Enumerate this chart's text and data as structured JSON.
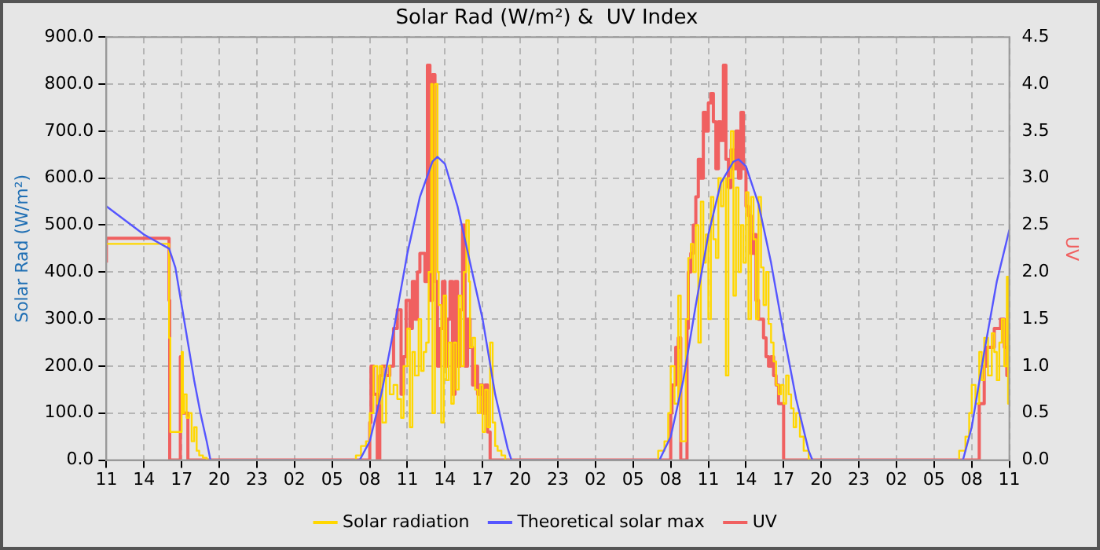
{
  "chart_data": {
    "type": "line",
    "title": "Solar Rad (W/m²) &  UV Index",
    "ylabel": "Solar Rad (W/m²)",
    "y2label": "UV",
    "xlim": [
      "--01-01T11:00",
      "--01-04T11:00"
    ],
    "xticks": [
      {
        "value": "--01-01T11:00",
        "label": "11"
      },
      {
        "value": "--01-01T14:00",
        "label": "14"
      },
      {
        "value": "--01-01T17:00",
        "label": "17"
      },
      {
        "value": "--01-01T20:00",
        "label": "20"
      },
      {
        "value": "--01-01T23:00",
        "label": "23"
      },
      {
        "value": "--01-02T02:00",
        "label": "02"
      },
      {
        "value": "--01-02T05:00",
        "label": "05"
      },
      {
        "value": "--01-02T08:00",
        "label": "08"
      },
      {
        "value": "--01-02T11:00",
        "label": "11"
      },
      {
        "value": "--01-02T14:00",
        "label": "14"
      },
      {
        "value": "--01-02T17:00",
        "label": "17"
      },
      {
        "value": "--01-02T20:00",
        "label": "20"
      },
      {
        "value": "--01-02T23:00",
        "label": "23"
      },
      {
        "value": "--01-03T02:00",
        "label": "02"
      },
      {
        "value": "--01-03T05:00",
        "label": "05"
      },
      {
        "value": "--01-03T08:00",
        "label": "08"
      },
      {
        "value": "--01-03T11:00",
        "label": "11"
      },
      {
        "value": "--01-03T14:00",
        "label": "14"
      },
      {
        "value": "--01-03T17:00",
        "label": "17"
      },
      {
        "value": "--01-03T20:00",
        "label": "20"
      },
      {
        "value": "--01-03T23:00",
        "label": "23"
      },
      {
        "value": "--01-04T02:00",
        "label": "02"
      },
      {
        "value": "--01-04T05:00",
        "label": "05"
      },
      {
        "value": "--01-04T08:00",
        "label": "08"
      },
      {
        "value": "--01-04T11:00",
        "label": "11"
      }
    ],
    "ylim": [
      0,
      900
    ],
    "yticks": [
      {
        "value": 0,
        "label": "0.0"
      },
      {
        "value": 100,
        "label": "100.0"
      },
      {
        "value": 200,
        "label": "200.0"
      },
      {
        "value": 300,
        "label": "300.0"
      },
      {
        "value": 400,
        "label": "400.0"
      },
      {
        "value": 500,
        "label": "500.0"
      },
      {
        "value": 600,
        "label": "600.0"
      },
      {
        "value": 700,
        "label": "700.0"
      },
      {
        "value": 800,
        "label": "800.0"
      },
      {
        "value": 900,
        "label": "900.0"
      }
    ],
    "y2lim": [
      0,
      4.5
    ],
    "y2ticks": [
      {
        "value": 0,
        "label": "0.0"
      },
      {
        "value": 0.5,
        "label": "0.5"
      },
      {
        "value": 1,
        "label": "1.0"
      },
      {
        "value": 1.5,
        "label": "1.5"
      },
      {
        "value": 2,
        "label": "2.0"
      },
      {
        "value": 2.5,
        "label": "2.5"
      },
      {
        "value": 3,
        "label": "3.0"
      },
      {
        "value": 3.5,
        "label": "3.5"
      },
      {
        "value": 4,
        "label": "4.0"
      },
      {
        "value": 4.5,
        "label": "4.5"
      }
    ],
    "grid": true,
    "legend": "bottom",
    "series": [
      {
        "name": "Solar radiation",
        "type": "step",
        "color": "#ffd700",
        "x": [
          "--01-01T11:00",
          "--01-01T16:00",
          "--01-01T16:06",
          "--01-01T16:18",
          "--01-01T17:00",
          "--01-01T17:06",
          "--01-01T17:12",
          "--01-01T17:24",
          "--01-01T17:36",
          "--01-01T17:48",
          "--01-01T18:00",
          "--01-01T18:12",
          "--01-01T18:24",
          "--01-01T18:42",
          "--01-01T19:00",
          "--01-01T19:18",
          "--01-02T06:54",
          "--01-02T07:18",
          "--01-02T07:42",
          "--01-02T08:00",
          "--01-02T08:18",
          "--01-02T08:36",
          "--01-02T08:48",
          "--01-02T09:00",
          "--01-02T09:18",
          "--01-02T09:36",
          "--01-02T09:54",
          "--01-02T10:12",
          "--01-02T10:30",
          "--01-02T10:42",
          "--01-02T11:00",
          "--01-02T11:12",
          "--01-02T11:24",
          "--01-02T11:36",
          "--01-02T11:54",
          "--01-02T12:06",
          "--01-02T12:18",
          "--01-02T12:30",
          "--01-02T12:42",
          "--01-02T12:54",
          "--01-02T13:00",
          "--01-02T13:12",
          "--01-02T13:24",
          "--01-02T13:30",
          "--01-02T13:42",
          "--01-02T13:54",
          "--01-02T14:06",
          "--01-02T14:18",
          "--01-02T14:30",
          "--01-02T14:42",
          "--01-02T14:54",
          "--01-02T15:06",
          "--01-02T15:18",
          "--01-02T15:30",
          "--01-02T15:42",
          "--01-02T15:54",
          "--01-02T16:00",
          "--01-02T16:12",
          "--01-02T16:24",
          "--01-02T16:36",
          "--01-02T16:48",
          "--01-02T17:00",
          "--01-02T17:12",
          "--01-02T17:24",
          "--01-02T17:36",
          "--01-02T17:48",
          "--01-02T18:00",
          "--01-02T18:12",
          "--01-02T18:30",
          "--01-02T18:48",
          "--01-02T19:06",
          "--01-03T07:00",
          "--01-03T07:30",
          "--01-03T07:48",
          "--01-03T08:00",
          "--01-03T08:18",
          "--01-03T08:36",
          "--01-03T08:48",
          "--01-03T09:00",
          "--01-03T09:12",
          "--01-03T09:24",
          "--01-03T09:36",
          "--01-03T09:48",
          "--01-03T10:00",
          "--01-03T10:12",
          "--01-03T10:24",
          "--01-03T10:36",
          "--01-03T10:48",
          "--01-03T11:00",
          "--01-03T11:12",
          "--01-03T11:24",
          "--01-03T11:36",
          "--01-03T11:48",
          "--01-03T12:00",
          "--01-03T12:12",
          "--01-03T12:24",
          "--01-03T12:36",
          "--01-03T12:48",
          "--01-03T13:00",
          "--01-03T13:12",
          "--01-03T13:24",
          "--01-03T13:36",
          "--01-03T13:48",
          "--01-03T14:00",
          "--01-03T14:12",
          "--01-03T14:24",
          "--01-03T14:36",
          "--01-03T14:48",
          "--01-03T15:00",
          "--01-03T15:12",
          "--01-03T15:24",
          "--01-03T15:36",
          "--01-03T15:48",
          "--01-03T16:00",
          "--01-03T16:12",
          "--01-03T16:24",
          "--01-03T16:36",
          "--01-03T16:48",
          "--01-03T17:00",
          "--01-03T17:12",
          "--01-03T17:24",
          "--01-03T17:36",
          "--01-03T17:48",
          "--01-03T18:00",
          "--01-03T18:18",
          "--01-03T18:36",
          "--01-03T19:00",
          "--01-03T19:18",
          "--01-04T07:00",
          "--01-04T07:30",
          "--01-04T07:48",
          "--01-04T08:00",
          "--01-04T08:18",
          "--01-04T08:36",
          "--01-04T08:48",
          "--01-04T09:00",
          "--01-04T09:18",
          "--01-04T09:36",
          "--01-04T09:48",
          "--01-04T10:00",
          "--01-04T10:12",
          "--01-04T10:24",
          "--01-04T10:36",
          "--01-04T10:48",
          "--01-04T10:54",
          "--01-04T11:00"
        ],
        "values": [
          460,
          460,
          260,
          60,
          60,
          230,
          100,
          140,
          90,
          100,
          40,
          70,
          20,
          10,
          5,
          0,
          0,
          10,
          30,
          40,
          100,
          200,
          120,
          200,
          80,
          200,
          140,
          160,
          130,
          90,
          200,
          280,
          70,
          230,
          180,
          300,
          190,
          230,
          250,
          400,
          800,
          100,
          800,
          400,
          330,
          80,
          350,
          170,
          250,
          120,
          250,
          150,
          350,
          200,
          400,
          510,
          380,
          240,
          260,
          150,
          100,
          160,
          60,
          150,
          70,
          250,
          80,
          30,
          20,
          10,
          0,
          0,
          20,
          40,
          100,
          200,
          120,
          350,
          40,
          40,
          300,
          430,
          460,
          400,
          500,
          250,
          550,
          420,
          480,
          300,
          560,
          470,
          430,
          600,
          540,
          600,
          180,
          600,
          700,
          350,
          580,
          400,
          500,
          420,
          570,
          300,
          560,
          470,
          300,
          560,
          410,
          330,
          400,
          290,
          250,
          210,
          160,
          140,
          160,
          120,
          180,
          140,
          110,
          70,
          100,
          50,
          20,
          0,
          0,
          20,
          50,
          100,
          160,
          120,
          230,
          170,
          260,
          180,
          270,
          230,
          170,
          250,
          300,
          200,
          390,
          120
        ]
      },
      {
        "name": "Theoretical solar max",
        "type": "line",
        "color": "#5555ff",
        "x": [
          "--01-01T11:00",
          "--01-01T12:00",
          "--01-01T13:00",
          "--01-01T14:00",
          "--01-01T15:00",
          "--01-01T16:00",
          "--01-01T16:30",
          "--01-01T17:00",
          "--01-01T17:30",
          "--01-01T18:00",
          "--01-01T18:30",
          "--01-01T19:00",
          "--01-01T19:18",
          "--01-02T07:12",
          "--01-02T08:00",
          "--01-02T09:00",
          "--01-02T10:00",
          "--01-02T11:00",
          "--01-02T12:00",
          "--01-02T13:00",
          "--01-02T13:24",
          "--01-02T14:00",
          "--01-02T15:00",
          "--01-02T16:00",
          "--01-02T17:00",
          "--01-02T18:00",
          "--01-02T19:00",
          "--01-02T19:18",
          "--01-03T07:06",
          "--01-03T08:00",
          "--01-03T09:00",
          "--01-03T10:00",
          "--01-03T11:00",
          "--01-03T12:00",
          "--01-03T13:00",
          "--01-03T13:24",
          "--01-03T14:00",
          "--01-03T15:00",
          "--01-03T16:00",
          "--01-03T17:00",
          "--01-03T18:00",
          "--01-03T19:00",
          "--01-03T19:18",
          "--01-04T07:18",
          "--01-04T08:00",
          "--01-04T09:00",
          "--01-04T10:00",
          "--01-04T11:00"
        ],
        "values": [
          540,
          520,
          500,
          480,
          465,
          450,
          410,
          330,
          250,
          170,
          100,
          40,
          0,
          0,
          40,
          150,
          290,
          440,
          560,
          635,
          645,
          630,
          540,
          420,
          300,
          140,
          25,
          0,
          0,
          50,
          170,
          330,
          480,
          590,
          635,
          640,
          625,
          545,
          420,
          270,
          130,
          20,
          0,
          0,
          70,
          230,
          380,
          490
        ]
      },
      {
        "name": "UV",
        "type": "step",
        "axis": "y2",
        "color": "#f06060",
        "x": [
          "--01-01T11:00",
          "--01-01T11:03",
          "--01-01T16:00",
          "--01-01T16:03",
          "--01-01T16:12",
          "--01-01T16:54",
          "--01-01T17:00",
          "--01-01T17:30",
          "--01-01T17:42",
          "--01-02T08:00",
          "--01-02T08:06",
          "--01-02T08:18",
          "--01-02T08:36",
          "--01-02T08:48",
          "--01-02T09:00",
          "--01-02T09:18",
          "--01-02T09:36",
          "--01-02T09:54",
          "--01-02T10:12",
          "--01-02T10:30",
          "--01-02T10:42",
          "--01-02T10:54",
          "--01-02T11:12",
          "--01-02T11:24",
          "--01-02T11:36",
          "--01-02T11:48",
          "--01-02T12:00",
          "--01-02T12:12",
          "--01-02T12:24",
          "--01-02T12:36",
          "--01-02T12:48",
          "--01-02T13:00",
          "--01-02T13:12",
          "--01-02T13:24",
          "--01-02T13:36",
          "--01-02T13:48",
          "--01-02T14:00",
          "--01-02T14:12",
          "--01-02T14:24",
          "--01-02T14:36",
          "--01-02T14:48",
          "--01-02T15:00",
          "--01-02T15:12",
          "--01-02T15:24",
          "--01-02T15:36",
          "--01-02T15:48",
          "--01-02T16:00",
          "--01-02T16:12",
          "--01-02T16:24",
          "--01-02T16:36",
          "--01-02T16:48",
          "--01-02T17:00",
          "--01-02T17:12",
          "--01-02T17:24",
          "--01-02T17:36",
          "--01-02T17:48",
          "--01-03T08:00",
          "--01-03T08:06",
          "--01-03T08:24",
          "--01-03T08:36",
          "--01-03T08:48",
          "--01-03T08:54",
          "--01-03T09:18",
          "--01-03T09:24",
          "--01-03T09:36",
          "--01-03T09:48",
          "--01-03T10:00",
          "--01-03T10:12",
          "--01-03T10:24",
          "--01-03T10:36",
          "--01-03T10:48",
          "--01-03T11:00",
          "--01-03T11:12",
          "--01-03T11:24",
          "--01-03T11:36",
          "--01-03T11:48",
          "--01-03T12:00",
          "--01-03T12:12",
          "--01-03T12:24",
          "--01-03T12:36",
          "--01-03T12:48",
          "--01-03T13:00",
          "--01-03T13:12",
          "--01-03T13:24",
          "--01-03T13:36",
          "--01-03T13:48",
          "--01-03T14:00",
          "--01-03T14:12",
          "--01-03T14:24",
          "--01-03T14:36",
          "--01-03T14:48",
          "--01-03T15:00",
          "--01-03T15:12",
          "--01-03T15:24",
          "--01-03T15:36",
          "--01-03T15:48",
          "--01-03T16:00",
          "--01-03T16:12",
          "--01-03T16:24",
          "--01-03T16:36",
          "--01-03T16:48",
          "--01-03T17:00",
          "--01-03T17:12",
          "--01-04T08:36",
          "--01-04T09:00",
          "--01-04T09:12",
          "--01-04T09:30",
          "--01-04T09:48",
          "--01-04T10:00",
          "--01-04T10:18",
          "--01-04T10:36",
          "--01-04T10:48",
          "--01-04T11:00"
        ],
        "values": [
          2.1,
          2.36,
          2.36,
          1.7,
          0,
          0,
          1.1,
          0.5,
          0,
          0,
          0.4,
          1.0,
          0.7,
          0,
          0.9,
          1.0,
          0.9,
          1.0,
          1.4,
          1.6,
          0.7,
          1.1,
          1.7,
          1.4,
          1.9,
          1.5,
          2.0,
          2.2,
          2.2,
          1.9,
          4.2,
          1.7,
          4.1,
          1.9,
          1.0,
          1.4,
          1.9,
          1.0,
          1.5,
          1.9,
          0.7,
          1.9,
          1.0,
          1.6,
          2.5,
          1.0,
          1.5,
          1.2,
          0.8,
          1.0,
          0.7,
          0.8,
          0.5,
          0.8,
          0.3,
          0,
          0,
          0.5,
          0.8,
          1.2,
          1.3,
          0,
          0,
          1.4,
          2.0,
          2.2,
          2.5,
          2.8,
          3.2,
          3.0,
          3.7,
          3.5,
          3.8,
          3.9,
          3.6,
          3.1,
          3.6,
          3.4,
          4.2,
          3.2,
          2.9,
          3.3,
          3.1,
          3.5,
          3.0,
          3.7,
          3.1,
          2.7,
          2.6,
          2.2,
          2.4,
          1.7,
          1.5,
          1.5,
          1.3,
          1.1,
          1.0,
          1.1,
          0.9,
          0.8,
          0.6,
          0.6,
          0,
          0,
          0.6,
          1.0,
          1.2,
          1.2,
          1.4,
          1.4,
          1.5,
          1.2,
          0.9
        ]
      }
    ]
  }
}
